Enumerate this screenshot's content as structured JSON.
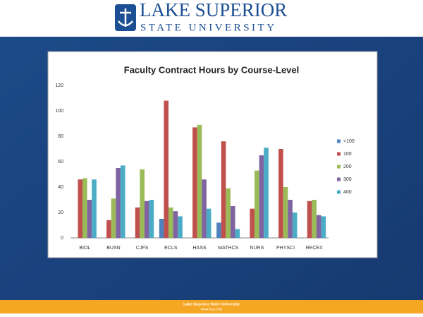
{
  "header": {
    "logo_top": "LAKE SUPERIOR",
    "logo_bottom": "STATE UNIVERSITY"
  },
  "footer": {
    "line1": "Lake Superior State University",
    "line2": "www.lssu.edu"
  },
  "chart_data": {
    "type": "bar",
    "title": "Faculty Contract Hours by Course-Level",
    "categories": [
      "BIOL",
      "BUSN",
      "CJFS",
      "ECLS",
      "HASS",
      "MATHCS",
      "NURS",
      "PHYSCI",
      "RECEX"
    ],
    "series": [
      {
        "name": "<100",
        "color": "#4f81bd",
        "values": [
          0,
          0,
          0,
          15,
          0,
          12,
          0,
          0,
          0
        ]
      },
      {
        "name": "100",
        "color": "#c0504d",
        "values": [
          46,
          14,
          24,
          108,
          87,
          76,
          23,
          70,
          29
        ]
      },
      {
        "name": "200",
        "color": "#9bbb59",
        "values": [
          47,
          31,
          54,
          24,
          89,
          39,
          53,
          40,
          30
        ]
      },
      {
        "name": "300",
        "color": "#8064a2",
        "values": [
          30,
          55,
          29,
          21,
          46,
          25,
          65,
          30,
          18
        ]
      },
      {
        "name": "400",
        "color": "#4bacc6",
        "values": [
          46,
          57,
          30,
          17,
          23,
          7,
          71,
          20,
          17
        ]
      }
    ],
    "ylim": [
      0,
      120
    ],
    "yticks": [
      0,
      20,
      40,
      60,
      80,
      100,
      120
    ],
    "grid": false,
    "legend": "right"
  }
}
